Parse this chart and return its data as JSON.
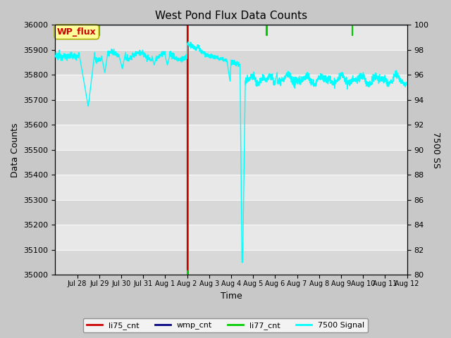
{
  "title": "West Pond Flux Data Counts",
  "xlabel": "Time",
  "ylabel_left": "Data Counts",
  "ylabel_right": "7500 SS",
  "ylim_left": [
    35000,
    36000
  ],
  "ylim_right": [
    80,
    100
  ],
  "x_tick_labels": [
    "Jul 28",
    "Jul 29",
    "Jul 30",
    "Jul 31",
    "Aug 1",
    "Aug 2",
    "Aug 3",
    "Aug 4",
    "Aug 5",
    "Aug 6",
    "Aug 7",
    "Aug 8",
    "Aug 9",
    "Aug 10",
    "Aug 11",
    "Aug 12"
  ],
  "background_color": "#c8c8c8",
  "plot_bg_color_light": "#e8e8e8",
  "plot_bg_color_dark": "#d8d8d8",
  "wp_flux_box_color": "#ffff99",
  "wp_flux_text_color": "#cc0000",
  "wp_flux_box_edge": "#aaaa00"
}
